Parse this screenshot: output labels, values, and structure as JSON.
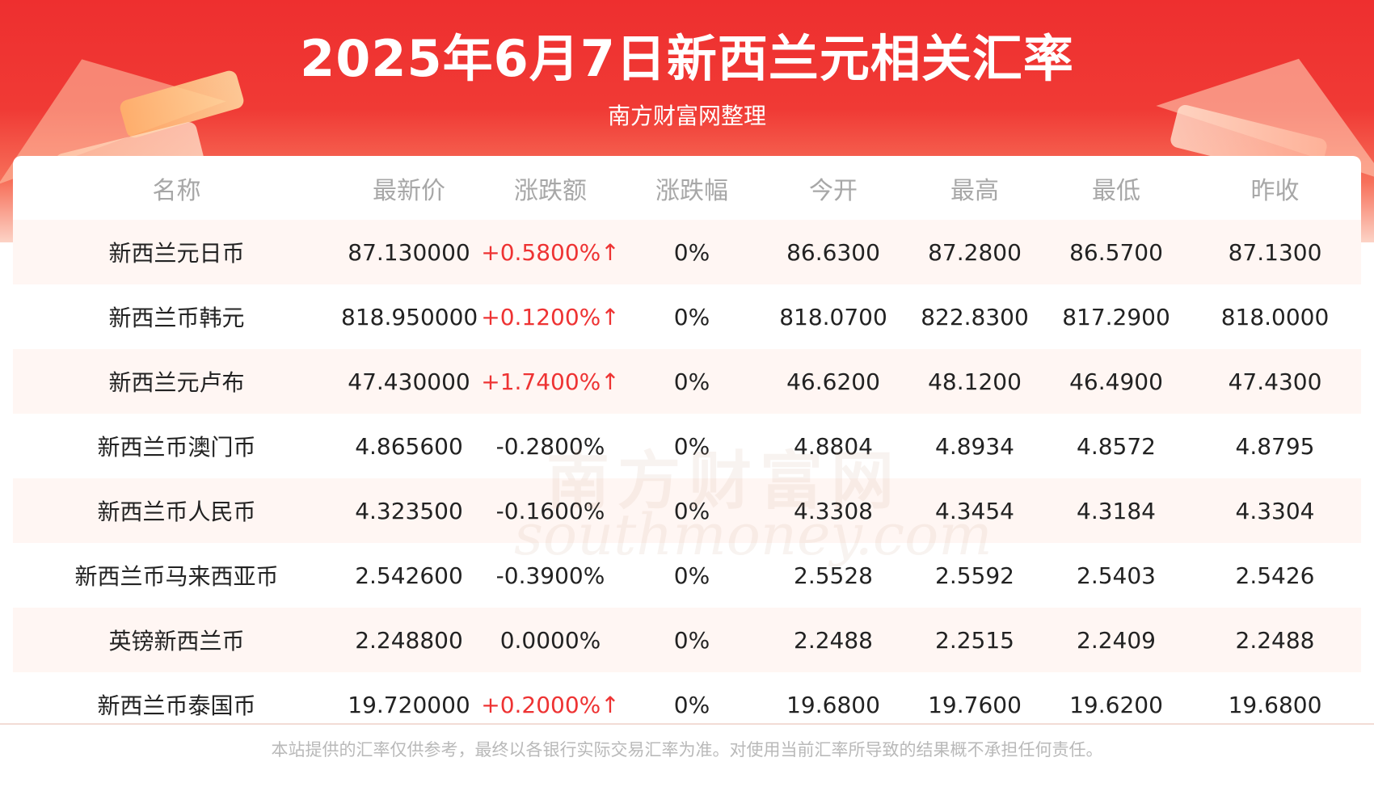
{
  "title": "2025年6月7日新西兰元相关汇率",
  "subtitle": "南方财富网整理",
  "watermark": {
    "cn": "南方财富网",
    "en": "southmoney.com"
  },
  "columns": [
    "名称",
    "最新价",
    "涨跌额",
    "涨跌幅",
    "今开",
    "最高",
    "最低",
    "昨收"
  ],
  "rows": [
    {
      "name": "新西兰元日币",
      "latest": "87.130000",
      "change": "+0.5800%↑",
      "direction": "up",
      "pct": "0%",
      "open": "86.6300",
      "high": "87.2800",
      "low": "86.5700",
      "prev_close": "87.1300"
    },
    {
      "name": "新西兰币韩元",
      "latest": "818.950000",
      "change": "+0.1200%↑",
      "direction": "up",
      "pct": "0%",
      "open": "818.0700",
      "high": "822.8300",
      "low": "817.2900",
      "prev_close": "818.0000"
    },
    {
      "name": "新西兰元卢布",
      "latest": "47.430000",
      "change": "+1.7400%↑",
      "direction": "up",
      "pct": "0%",
      "open": "46.6200",
      "high": "48.1200",
      "low": "46.4900",
      "prev_close": "47.4300"
    },
    {
      "name": "新西兰币澳门币",
      "latest": "4.865600",
      "change": "-0.2800%",
      "direction": "down",
      "pct": "0%",
      "open": "4.8804",
      "high": "4.8934",
      "low": "4.8572",
      "prev_close": "4.8795"
    },
    {
      "name": "新西兰币人民币",
      "latest": "4.323500",
      "change": "-0.1600%",
      "direction": "down",
      "pct": "0%",
      "open": "4.3308",
      "high": "4.3454",
      "low": "4.3184",
      "prev_close": "4.3304"
    },
    {
      "name": "新西兰币马来西亚币",
      "latest": "2.542600",
      "change": "-0.3900%",
      "direction": "down",
      "pct": "0%",
      "open": "2.5528",
      "high": "2.5592",
      "low": "2.5403",
      "prev_close": "2.5426"
    },
    {
      "name": "英镑新西兰币",
      "latest": "2.248800",
      "change": "0.0000%",
      "direction": "flat",
      "pct": "0%",
      "open": "2.2488",
      "high": "2.2515",
      "low": "2.2409",
      "prev_close": "2.2488"
    },
    {
      "name": "新西兰币泰国币",
      "latest": "19.720000",
      "change": "+0.2000%↑",
      "direction": "up",
      "pct": "0%",
      "open": "19.6800",
      "high": "19.7600",
      "low": "19.6200",
      "prev_close": "19.6800"
    }
  ],
  "colors": {
    "up": "#ee3333",
    "neutral": "#222222",
    "header_text": "#a7a7a7",
    "banner": "#ee2f2f"
  },
  "footer": "本站提供的汇率仅供参考，最终以各银行实际交易汇率为准。对使用当前汇率所导致的结果概不承担任何责任。"
}
